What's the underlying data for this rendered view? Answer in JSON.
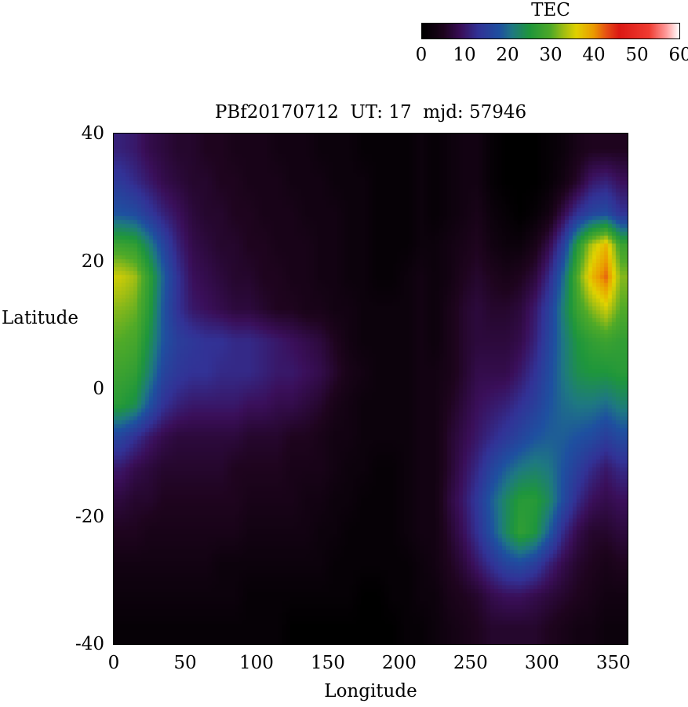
{
  "figure": {
    "background": "#ffffff"
  },
  "chart_data": {
    "type": "heatmap",
    "title": "PBf20170712  UT: 17  mjd: 57946",
    "xlabel": "Longitude",
    "ylabel": "Latitude",
    "xlim": [
      0,
      360
    ],
    "ylim": [
      -40,
      40
    ],
    "xticks": [
      0,
      50,
      100,
      150,
      200,
      250,
      300,
      350
    ],
    "yticks": [
      40,
      20,
      0,
      -20,
      -40
    ],
    "grid_lines": false,
    "colorbar": {
      "label": "TEC",
      "min": 0,
      "max": 60,
      "ticks": [
        0,
        10,
        20,
        30,
        40,
        50,
        60
      ],
      "orientation": "horizontal"
    },
    "colormap_stops": [
      [
        0,
        "#000000"
      ],
      [
        5,
        "#1e041e"
      ],
      [
        9,
        "#3a0f5a"
      ],
      [
        13,
        "#323296"
      ],
      [
        18,
        "#1e50a0"
      ],
      [
        21,
        "#1e7882"
      ],
      [
        25,
        "#1e963c"
      ],
      [
        30,
        "#50aa28"
      ],
      [
        33,
        "#a0be14"
      ],
      [
        36,
        "#e1d200"
      ],
      [
        40,
        "#eb9b00"
      ],
      [
        43,
        "#e65014"
      ],
      [
        46,
        "#dc1914"
      ],
      [
        53,
        "#f03c32"
      ],
      [
        57,
        "#ff9b9b"
      ],
      [
        60,
        "#ffffff"
      ]
    ],
    "grid": {
      "lon_start": 5,
      "lon_step": 10,
      "n_lon": 36,
      "lat_start": 37.5,
      "lat_step": 5,
      "n_lat": 16,
      "rows_order": "top_to_bottom",
      "values": [
        [
          11,
          10,
          8,
          7,
          6,
          6,
          5,
          5,
          4,
          4,
          4,
          3,
          3,
          3,
          2,
          2,
          2,
          1,
          1,
          1,
          1,
          2,
          1,
          2,
          3,
          3,
          1,
          0,
          0,
          0,
          1,
          2,
          4,
          5,
          5,
          5
        ],
        [
          14,
          12,
          10,
          8,
          7,
          6,
          6,
          5,
          5,
          4,
          4,
          4,
          3,
          3,
          3,
          2,
          2,
          2,
          1,
          1,
          1,
          2,
          1,
          2,
          3,
          3,
          1,
          0,
          0,
          0,
          1,
          3,
          6,
          10,
          11,
          9
        ],
        [
          18,
          17,
          14,
          11,
          9,
          7,
          6,
          6,
          5,
          5,
          4,
          4,
          4,
          3,
          3,
          3,
          2,
          2,
          1,
          1,
          1,
          2,
          1,
          2,
          3,
          4,
          2,
          1,
          0,
          1,
          3,
          8,
          13,
          16,
          17,
          13
        ],
        [
          28,
          27,
          22,
          16,
          11,
          8,
          7,
          6,
          6,
          5,
          5,
          4,
          4,
          4,
          3,
          3,
          2,
          2,
          1,
          1,
          1,
          2,
          2,
          3,
          4,
          5,
          3,
          2,
          2,
          4,
          8,
          15,
          26,
          34,
          38,
          28
        ],
        [
          35,
          33,
          27,
          19,
          13,
          9,
          8,
          7,
          6,
          6,
          5,
          5,
          4,
          4,
          3,
          3,
          2,
          2,
          1,
          1,
          2,
          3,
          2,
          3,
          5,
          6,
          5,
          4,
          5,
          7,
          12,
          20,
          30,
          38,
          42,
          32
        ],
        [
          32,
          31,
          26,
          18,
          13,
          10,
          9,
          8,
          7,
          7,
          6,
          5,
          5,
          4,
          4,
          3,
          3,
          2,
          2,
          2,
          2,
          3,
          2,
          4,
          6,
          7,
          6,
          6,
          7,
          10,
          15,
          22,
          28,
          32,
          35,
          30
        ],
        [
          30,
          29,
          24,
          18,
          15,
          14,
          13,
          13,
          12,
          12,
          11,
          10,
          9,
          8,
          7,
          5,
          3,
          2,
          2,
          2,
          2,
          3,
          2,
          4,
          6,
          7,
          7,
          7,
          8,
          11,
          16,
          21,
          25,
          27,
          28,
          27
        ],
        [
          28,
          27,
          22,
          16,
          14,
          13,
          13,
          12,
          12,
          12,
          11,
          10,
          10,
          9,
          8,
          6,
          4,
          3,
          2,
          2,
          2,
          3,
          3,
          4,
          6,
          8,
          8,
          8,
          10,
          13,
          17,
          21,
          24,
          25,
          25,
          26
        ],
        [
          26,
          24,
          18,
          13,
          11,
          10,
          10,
          10,
          10,
          9,
          9,
          8,
          8,
          7,
          6,
          4,
          3,
          2,
          2,
          2,
          2,
          3,
          3,
          5,
          7,
          9,
          10,
          11,
          13,
          15,
          18,
          20,
          21,
          21,
          20,
          22
        ],
        [
          16,
          13,
          10,
          8,
          7,
          7,
          7,
          7,
          7,
          6,
          6,
          6,
          5,
          5,
          4,
          3,
          3,
          2,
          2,
          2,
          2,
          3,
          3,
          6,
          8,
          10,
          12,
          14,
          16,
          18,
          19,
          19,
          18,
          17,
          15,
          17
        ],
        [
          10,
          8,
          7,
          6,
          6,
          6,
          6,
          6,
          5,
          5,
          5,
          5,
          4,
          4,
          4,
          3,
          2,
          2,
          1,
          1,
          2,
          3,
          3,
          6,
          9,
          12,
          16,
          19,
          21,
          22,
          21,
          18,
          15,
          12,
          10,
          12
        ],
        [
          7,
          6,
          6,
          5,
          5,
          5,
          5,
          5,
          5,
          4,
          4,
          4,
          4,
          3,
          3,
          2,
          2,
          1,
          1,
          1,
          2,
          3,
          3,
          7,
          10,
          14,
          19,
          23,
          26,
          26,
          23,
          17,
          12,
          9,
          8,
          9
        ],
        [
          5,
          5,
          4,
          4,
          4,
          4,
          4,
          4,
          4,
          3,
          3,
          3,
          3,
          3,
          2,
          2,
          1,
          1,
          1,
          1,
          2,
          3,
          3,
          6,
          9,
          13,
          18,
          23,
          27,
          25,
          19,
          12,
          8,
          6,
          6,
          7
        ],
        [
          3,
          3,
          3,
          3,
          3,
          3,
          3,
          2,
          2,
          2,
          2,
          2,
          2,
          2,
          2,
          1,
          1,
          1,
          1,
          1,
          1,
          2,
          3,
          5,
          7,
          10,
          13,
          16,
          17,
          15,
          11,
          8,
          6,
          5,
          4,
          5
        ],
        [
          2,
          2,
          2,
          2,
          2,
          2,
          2,
          2,
          2,
          1,
          1,
          1,
          1,
          1,
          1,
          1,
          1,
          0,
          0,
          1,
          1,
          2,
          2,
          4,
          5,
          6,
          8,
          9,
          9,
          8,
          7,
          6,
          5,
          4,
          3,
          3
        ],
        [
          1,
          1,
          1,
          1,
          1,
          1,
          1,
          1,
          1,
          1,
          1,
          1,
          0,
          0,
          0,
          0,
          0,
          0,
          0,
          0,
          1,
          1,
          2,
          3,
          4,
          5,
          6,
          6,
          6,
          6,
          5,
          4,
          3,
          3,
          2,
          2
        ]
      ]
    }
  }
}
